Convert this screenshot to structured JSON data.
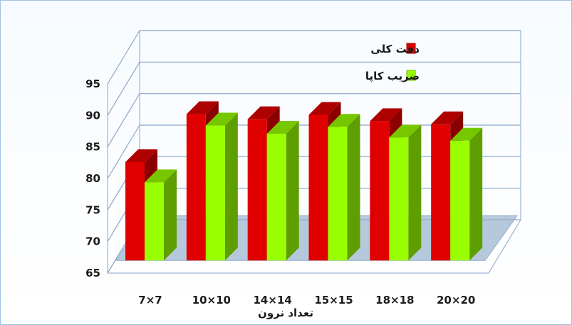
{
  "chart_data": {
    "type": "bar",
    "title": "",
    "xlabel": "تعداد نرون",
    "ylabel": "",
    "ylim": [
      65,
      95
    ],
    "yticks": [
      65,
      70,
      75,
      80,
      85,
      90,
      95
    ],
    "grid": true,
    "legend_position": "top-right",
    "categories": [
      "7×7",
      "10×10",
      "14×14",
      "15×15",
      "18×18",
      "20×20"
    ],
    "series": [
      {
        "name": "دقت كلى",
        "color": "#e00000",
        "values": [
          82.6,
          90.2,
          89.4,
          90.1,
          89.1,
          88.6
        ]
      },
      {
        "name": "ضريب كاپا",
        "color": "#99ff00",
        "values": [
          79.4,
          88.4,
          87.1,
          88.2,
          86.5,
          86.0
        ]
      }
    ]
  }
}
